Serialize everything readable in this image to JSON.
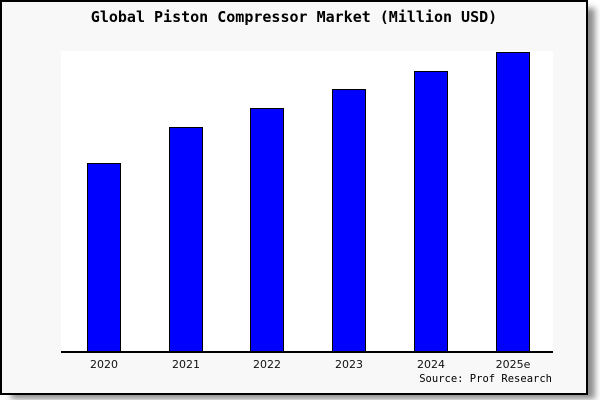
{
  "title": "Global Piston Compressor Market (Million USD)",
  "source_note": "Source: Prof Research",
  "frame": {
    "background": "#f8f8f8",
    "border_color": "#000000",
    "plot_background": "#ffffff"
  },
  "chart_data": {
    "type": "bar",
    "title": "Global Piston Compressor Market (Million USD)",
    "unit": "Million USD",
    "categories": [
      "2020",
      "2021",
      "2022",
      "2023",
      "2024",
      "2025e"
    ],
    "values_relative_pct_of_tallest": [
      62.7,
      75.0,
      81.3,
      87.7,
      93.7,
      100
    ],
    "heights_pct_of_plot": [
      62.5,
      74.8,
      81.1,
      87.4,
      93.4,
      99.7
    ],
    "xlabel": "",
    "ylabel": "",
    "y_axis_labels_visible": false,
    "gridlines": false,
    "legend": "none",
    "bar_color": "#0000ff",
    "bar_border_color": "#000000",
    "axis_line_color": "#000000",
    "source": "Source: Prof Research"
  }
}
